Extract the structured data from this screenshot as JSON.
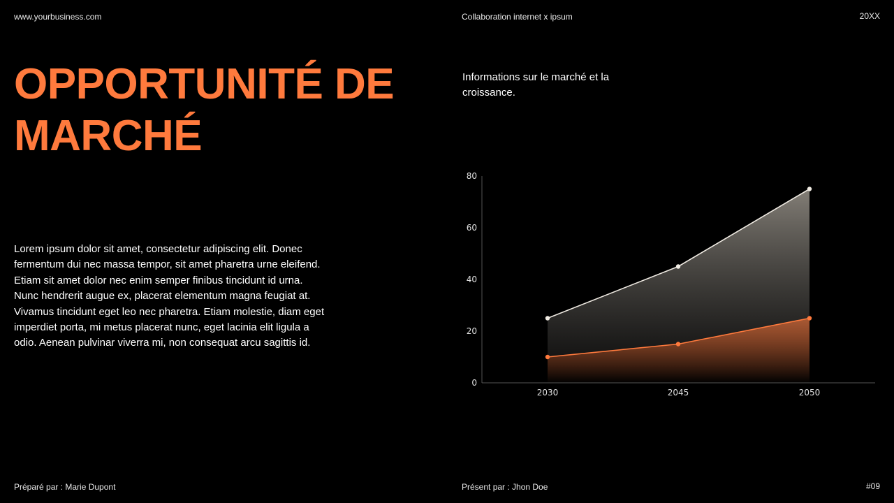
{
  "header": {
    "website": "www.yourbusiness.com",
    "collab": "Collaboration internet x ipsum",
    "year": "20XX"
  },
  "title": "OPPORTUNITÉ DE MARCHÉ",
  "subtitle": "Informations sur le marché et la croissance.",
  "body": "Lorem ipsum dolor sit amet, consectetur adipiscing elit. Donec fermentum dui nec massa tempor, sit amet pharetra urne eleifend. Etiam sit amet dolor nec enim semper finibus tincidunt id urna. Nunc hendrerit augue ex, placerat elementum magna feugiat at. Vivamus tincidunt eget leo nec pharetra. Etiam molestie, diam eget imperdiet porta, mi metus placerat nunc, eget lacinia elit ligula a odio. Aenean pulvinar viverra mi, non consequat arcu sagittis id.",
  "footer": {
    "prepared": "Préparé par : Marie Dupont",
    "presented": "Présent par : Jhon Doe",
    "page": "#09"
  },
  "colors": {
    "accent": "#ff7a3d",
    "series_light": "#f0ebe3"
  },
  "chart_data": {
    "type": "area",
    "categories": [
      "2030",
      "2045",
      "2050"
    ],
    "series": [
      {
        "values": [
          25,
          45,
          75
        ],
        "color": "#f0ebe3"
      },
      {
        "values": [
          10,
          15,
          25
        ],
        "color": "#ff7a3d"
      }
    ],
    "yticks": [
      "0",
      "20",
      "40",
      "60",
      "80"
    ],
    "ylim": [
      0,
      80
    ],
    "grid": false,
    "legend": "none"
  }
}
